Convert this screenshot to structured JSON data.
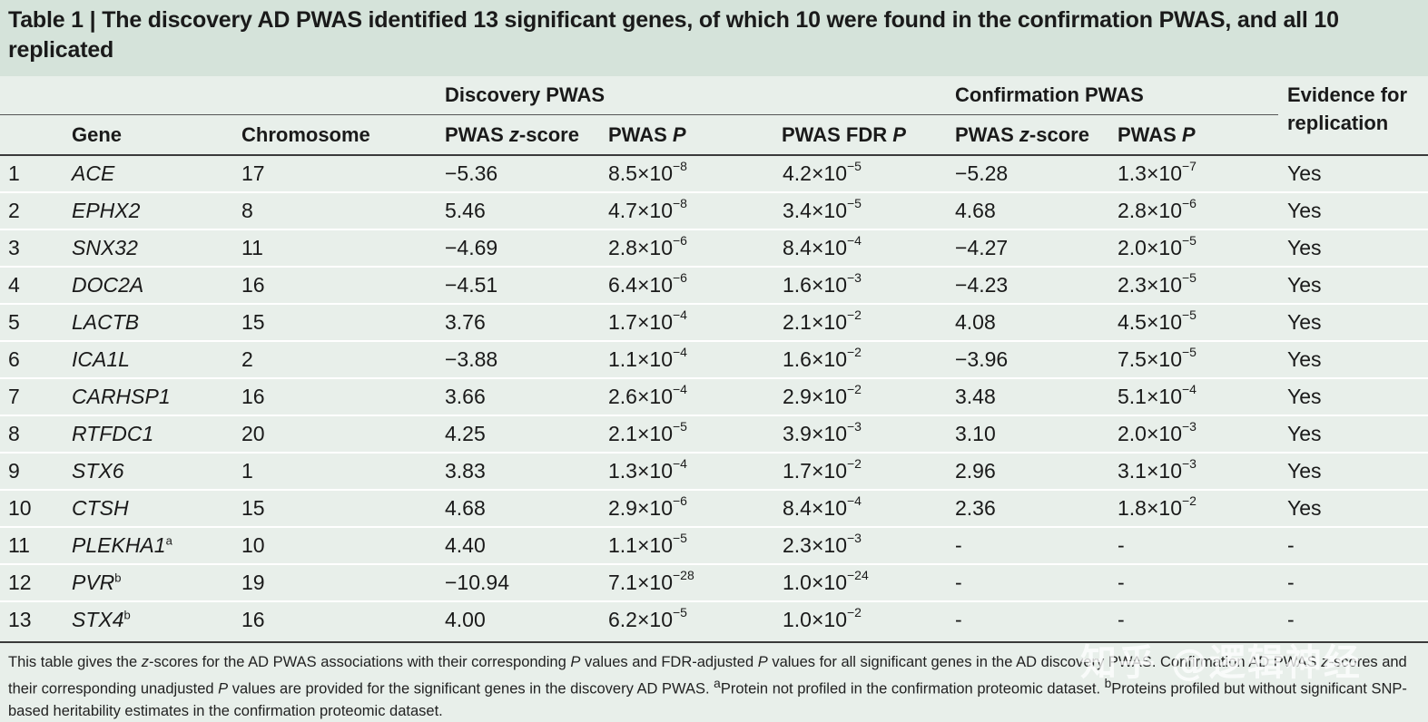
{
  "title": {
    "label": "Table 1 |",
    "text": "The discovery AD PWAS identified 13 significant genes, of which 10 were found in the confirmation PWAS, and all 10 replicated"
  },
  "header": {
    "groups": {
      "discovery": "Discovery PWAS",
      "confirmation": "Confirmation PWAS",
      "evidence_line1": "Evidence for",
      "evidence_line2": "replication"
    },
    "columns": {
      "gene": "Gene",
      "chromosome": "Chromosome",
      "disc_z_prefix": "PWAS ",
      "disc_z_italic": "z",
      "disc_z_suffix": "-score",
      "disc_p_prefix": "PWAS ",
      "disc_p_italic": "P",
      "disc_fdr_prefix": "PWAS FDR ",
      "disc_fdr_italic": "P",
      "conf_z_prefix": "PWAS ",
      "conf_z_italic": "z",
      "conf_z_suffix": "-score",
      "conf_p_prefix": "PWAS ",
      "conf_p_italic": "P"
    }
  },
  "rows": [
    {
      "n": "1",
      "gene": "ACE",
      "sup": "",
      "chr": "17",
      "dz": "−5.36",
      "dp_m": "8.5",
      "dp_e": "−8",
      "fdr_m": "4.2",
      "fdr_e": "−5",
      "cz": "−5.28",
      "cp_m": "1.3",
      "cp_e": "−7",
      "ev": "Yes"
    },
    {
      "n": "2",
      "gene": "EPHX2",
      "sup": "",
      "chr": "8",
      "dz": "5.46",
      "dp_m": "4.7",
      "dp_e": "−8",
      "fdr_m": "3.4",
      "fdr_e": "−5",
      "cz": "4.68",
      "cp_m": "2.8",
      "cp_e": "−6",
      "ev": "Yes"
    },
    {
      "n": "3",
      "gene": "SNX32",
      "sup": "",
      "chr": "11",
      "dz": "−4.69",
      "dp_m": "2.8",
      "dp_e": "−6",
      "fdr_m": "8.4",
      "fdr_e": "−4",
      "cz": "−4.27",
      "cp_m": "2.0",
      "cp_e": "−5",
      "ev": "Yes"
    },
    {
      "n": "4",
      "gene": "DOC2A",
      "sup": "",
      "chr": "16",
      "dz": "−4.51",
      "dp_m": "6.4",
      "dp_e": "−6",
      "fdr_m": "1.6",
      "fdr_e": "−3",
      "cz": "−4.23",
      "cp_m": "2.3",
      "cp_e": "−5",
      "ev": "Yes"
    },
    {
      "n": "5",
      "gene": "LACTB",
      "sup": "",
      "chr": "15",
      "dz": "3.76",
      "dp_m": "1.7",
      "dp_e": "−4",
      "fdr_m": "2.1",
      "fdr_e": "−2",
      "cz": "4.08",
      "cp_m": "4.5",
      "cp_e": "−5",
      "ev": "Yes"
    },
    {
      "n": "6",
      "gene": "ICA1L",
      "sup": "",
      "chr": "2",
      "dz": "−3.88",
      "dp_m": "1.1",
      "dp_e": "−4",
      "fdr_m": "1.6",
      "fdr_e": "−2",
      "cz": "−3.96",
      "cp_m": "7.5",
      "cp_e": "−5",
      "ev": "Yes"
    },
    {
      "n": "7",
      "gene": "CARHSP1",
      "sup": "",
      "chr": "16",
      "dz": "3.66",
      "dp_m": "2.6",
      "dp_e": "−4",
      "fdr_m": "2.9",
      "fdr_e": "−2",
      "cz": "3.48",
      "cp_m": "5.1",
      "cp_e": "−4",
      "ev": "Yes"
    },
    {
      "n": "8",
      "gene": "RTFDC1",
      "sup": "",
      "chr": "20",
      "dz": "4.25",
      "dp_m": "2.1",
      "dp_e": "−5",
      "fdr_m": "3.9",
      "fdr_e": "−3",
      "cz": "3.10",
      "cp_m": "2.0",
      "cp_e": "−3",
      "ev": "Yes"
    },
    {
      "n": "9",
      "gene": "STX6",
      "sup": "",
      "chr": "1",
      "dz": "3.83",
      "dp_m": "1.3",
      "dp_e": "−4",
      "fdr_m": "1.7",
      "fdr_e": "−2",
      "cz": "2.96",
      "cp_m": "3.1",
      "cp_e": "−3",
      "ev": "Yes"
    },
    {
      "n": "10",
      "gene": "CTSH",
      "sup": "",
      "chr": "15",
      "dz": "4.68",
      "dp_m": "2.9",
      "dp_e": "−6",
      "fdr_m": "8.4",
      "fdr_e": "−4",
      "cz": "2.36",
      "cp_m": "1.8",
      "cp_e": "−2",
      "ev": "Yes"
    },
    {
      "n": "11",
      "gene": "PLEKHA1",
      "sup": "a",
      "chr": "10",
      "dz": "4.40",
      "dp_m": "1.1",
      "dp_e": "−5",
      "fdr_m": "2.3",
      "fdr_e": "−3",
      "cz": "-",
      "cp_m": "",
      "cp_e": "",
      "cp_dash": "-",
      "ev": "-"
    },
    {
      "n": "12",
      "gene": "PVR",
      "sup": "b",
      "chr": "19",
      "dz": "−10.94",
      "dp_m": "7.1",
      "dp_e": "−28",
      "fdr_m": "1.0",
      "fdr_e": "−24",
      "cz": "-",
      "cp_m": "",
      "cp_e": "",
      "cp_dash": "-",
      "ev": "-"
    },
    {
      "n": "13",
      "gene": "STX4",
      "sup": "b",
      "chr": "16",
      "dz": "4.00",
      "dp_m": "6.2",
      "dp_e": "−5",
      "fdr_m": "1.0",
      "fdr_e": "−2",
      "cz": "-",
      "cp_m": "",
      "cp_e": "",
      "cp_dash": "-",
      "ev": "-"
    }
  ],
  "times": "×10",
  "footer": {
    "s1": "This table gives the ",
    "s1_z": "z",
    "s2": "-scores for the AD PWAS associations with their corresponding ",
    "s2_p": "P",
    "s3": " values and FDR-adjusted ",
    "s3_p": "P",
    "s4": " values for all significant genes in the AD discovery PWAS. Confirmation AD PWAS ",
    "s4_z": "z",
    "s5": "-scores and their corresponding unadjusted ",
    "s5_p": "P",
    "s6": " values are provided for the significant genes in the discovery AD PWAS. ",
    "note_a_mark": "a",
    "note_a": "Protein not profiled in the confirmation proteomic dataset. ",
    "note_b_mark": "b",
    "note_b": "Proteins profiled but without significant SNP-based heritability estimates in the confirmation proteomic dataset."
  },
  "watermark": "知乎 @逻辑神经"
}
